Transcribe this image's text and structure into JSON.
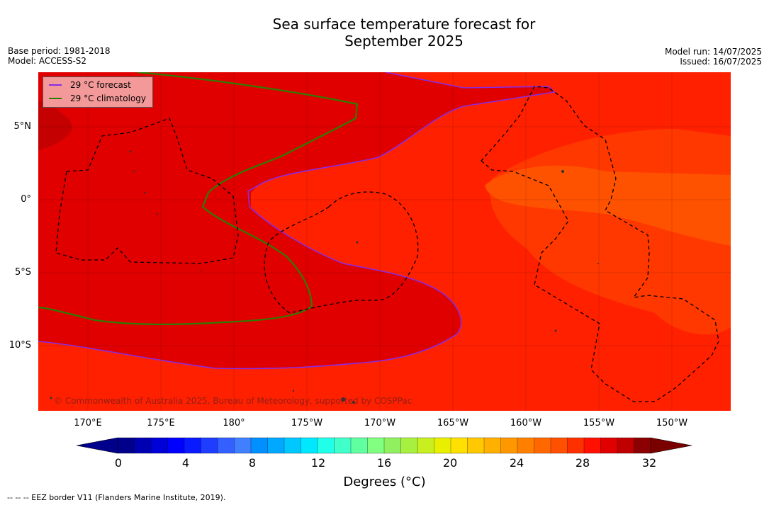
{
  "title_line1": "Sea surface temperature forecast for",
  "title_line2": "September 2025",
  "base_period": "Base period: 1981-2018",
  "model": "Model: ACCESS-S2",
  "model_run": "Model run: 14/07/2025",
  "issued": "Issued: 16/07/2025",
  "legend": {
    "forecast": "29 °C  forecast",
    "climatology": "29 °C  climatology",
    "forecast_color": "#8a2be2",
    "climatology_color": "#2e7d00"
  },
  "lat_labels": [
    "5°N",
    "0°",
    "5°S",
    "10°S"
  ],
  "lon_labels": [
    "170°E",
    "175°E",
    "180°",
    "175°W",
    "170°W",
    "165°W",
    "160°W",
    "155°W",
    "150°W"
  ],
  "copyright": "© Commonwealth of Australia 2025, Bureau of Meteorology, supported by COSPPac",
  "colorbar": {
    "ticks": [
      "0",
      "4",
      "8",
      "12",
      "16",
      "20",
      "24",
      "28",
      "32"
    ],
    "label": "Degrees (°C)",
    "colors": [
      "#00008b",
      "#0000b3",
      "#0000d9",
      "#0000ff",
      "#0a1aff",
      "#1f3dff",
      "#3360ff",
      "#4080ff",
      "#0090ff",
      "#00a8ff",
      "#00c8ff",
      "#00e8ff",
      "#20ffe8",
      "#40ffc8",
      "#60ffa0",
      "#80ff80",
      "#90f060",
      "#a8f040",
      "#c8f020",
      "#e8f000",
      "#ffe000",
      "#ffc800",
      "#ffb000",
      "#ff9800",
      "#ff8000",
      "#ff6800",
      "#ff5000",
      "#ff3000",
      "#ff1000",
      "#e00000",
      "#c00000",
      "#8b0000"
    ]
  },
  "eez_note": "--  --  -- EEZ border V11 (Flanders Marine Institute, 2019)."
}
